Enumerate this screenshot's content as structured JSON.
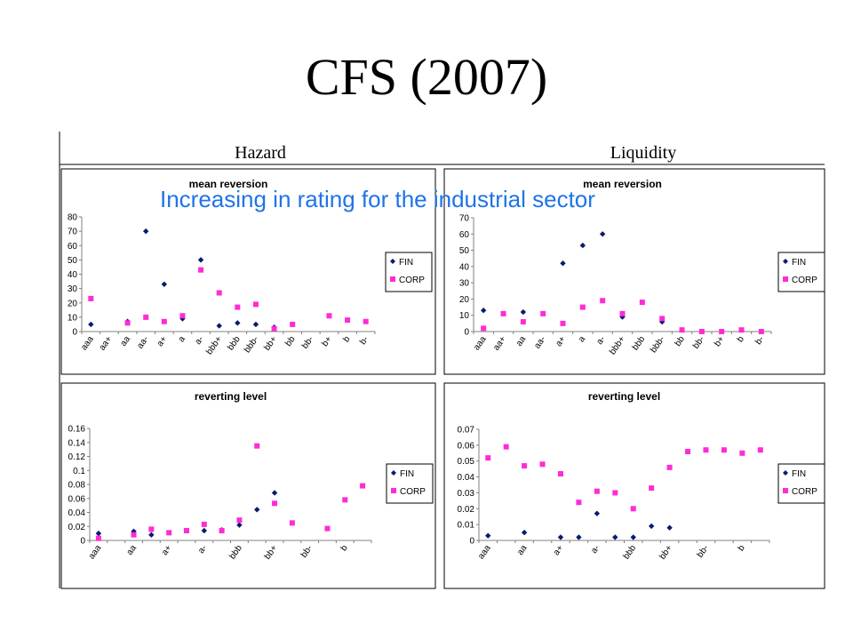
{
  "slide": {
    "title": "CFS (2007)",
    "annotation": "Increasing in rating for the industrial sector",
    "column_headers": [
      "Hazard",
      "Liquidity"
    ]
  },
  "colors": {
    "FIN": "#0a1a6e",
    "CORP": "#ff2bd6",
    "annotation": "#1f74e8"
  },
  "chart_data": [
    {
      "type": "scatter",
      "title": "mean reversion",
      "panel": "Hazard",
      "categories": [
        "aaa",
        "aa+",
        "aa",
        "aa-",
        "a+",
        "a",
        "a-",
        "bbb+",
        "bbb",
        "bbb-",
        "bb+",
        "bb",
        "bb-",
        "b+",
        "b",
        "b-"
      ],
      "ylim": [
        0,
        80
      ],
      "yticks": [
        "0",
        "10",
        "20",
        "30",
        "40",
        "50",
        "60",
        "70",
        "80"
      ],
      "series": [
        {
          "name": "FIN",
          "marker": "diamond",
          "values": [
            5,
            null,
            7,
            70,
            33,
            9,
            50,
            4,
            6,
            5,
            3,
            null,
            null,
            null,
            null,
            null
          ]
        },
        {
          "name": "CORP",
          "marker": "square",
          "values": [
            23,
            null,
            6,
            10,
            7,
            11,
            43,
            27,
            17,
            19,
            2,
            5,
            null,
            11,
            8,
            7
          ]
        }
      ],
      "legend": "right"
    },
    {
      "type": "scatter",
      "title": "mean reversion",
      "panel": "Liquidity",
      "categories": [
        "aaa",
        "aa+",
        "aa",
        "aa-",
        "a+",
        "a",
        "a-",
        "bbb+",
        "bbb",
        "bbb-",
        "bb",
        "bb-",
        "b+",
        "b",
        "b-"
      ],
      "ylim": [
        0,
        70
      ],
      "yticks": [
        "0",
        "10",
        "20",
        "30",
        "40",
        "50",
        "60",
        "70"
      ],
      "series": [
        {
          "name": "FIN",
          "marker": "diamond",
          "values": [
            13,
            null,
            12,
            null,
            42,
            53,
            60,
            9,
            null,
            6,
            null,
            null,
            null,
            null,
            null
          ]
        },
        {
          "name": "CORP",
          "marker": "square",
          "values": [
            2,
            11,
            6,
            11,
            5,
            15,
            19,
            11,
            18,
            8,
            1,
            0,
            0,
            1,
            0
          ]
        }
      ],
      "legend": "right"
    },
    {
      "type": "scatter",
      "title": "reverting level",
      "panel": "Hazard",
      "categories": [
        "aaa",
        "aa+",
        "aa",
        "aa-",
        "a+",
        "a",
        "a-",
        "bbb+",
        "bbb",
        "bbb-",
        "bb+",
        "bb",
        "bb-",
        "b+",
        "b",
        "b-"
      ],
      "tick_labels": [
        "aaa",
        "aa",
        "a+",
        "a-",
        "bbb",
        "bb+",
        "bb-",
        "b"
      ],
      "ylim": [
        0,
        0.16
      ],
      "yticks": [
        "0",
        "0.02",
        "0.04",
        "0.06",
        "0.08",
        "0.1",
        "0.12",
        "0.14",
        "0.16"
      ],
      "series": [
        {
          "name": "FIN",
          "marker": "diamond",
          "values": [
            0.01,
            null,
            0.013,
            0.008,
            null,
            null,
            0.014,
            0.015,
            0.022,
            0.044,
            0.068,
            null,
            null,
            null,
            null,
            null
          ]
        },
        {
          "name": "CORP",
          "marker": "square",
          "values": [
            0.003,
            null,
            0.008,
            0.016,
            0.011,
            0.014,
            0.023,
            0.014,
            0.029,
            0.135,
            0.053,
            0.025,
            null,
            0.017,
            0.058,
            0.078
          ]
        }
      ],
      "legend": "right"
    },
    {
      "type": "scatter",
      "title": "reverting level",
      "panel": "Liquidity",
      "categories": [
        "aaa",
        "aa+",
        "aa",
        "aa-",
        "a+",
        "a",
        "a-",
        "bbb+",
        "bbb",
        "bbb-",
        "bb+",
        "bb",
        "bb-",
        "b+",
        "b",
        "b-"
      ],
      "tick_labels": [
        "aaa",
        "aa",
        "a+",
        "a-",
        "bbb",
        "bb+",
        "bb-",
        "b"
      ],
      "ylim": [
        0,
        0.07
      ],
      "yticks": [
        "0",
        "0.01",
        "0.02",
        "0.03",
        "0.04",
        "0.05",
        "0.06",
        "0.07"
      ],
      "series": [
        {
          "name": "FIN",
          "marker": "diamond",
          "values": [
            0.003,
            null,
            0.005,
            null,
            0.002,
            0.002,
            0.017,
            0.002,
            0.002,
            0.009,
            0.008,
            null,
            null,
            null,
            null,
            null
          ]
        },
        {
          "name": "CORP",
          "marker": "square",
          "values": [
            0.052,
            0.059,
            0.047,
            0.048,
            0.042,
            0.024,
            0.031,
            0.03,
            0.02,
            0.033,
            0.046,
            0.056,
            0.057,
            0.057,
            0.055,
            0.057
          ]
        }
      ],
      "legend": "right"
    }
  ]
}
